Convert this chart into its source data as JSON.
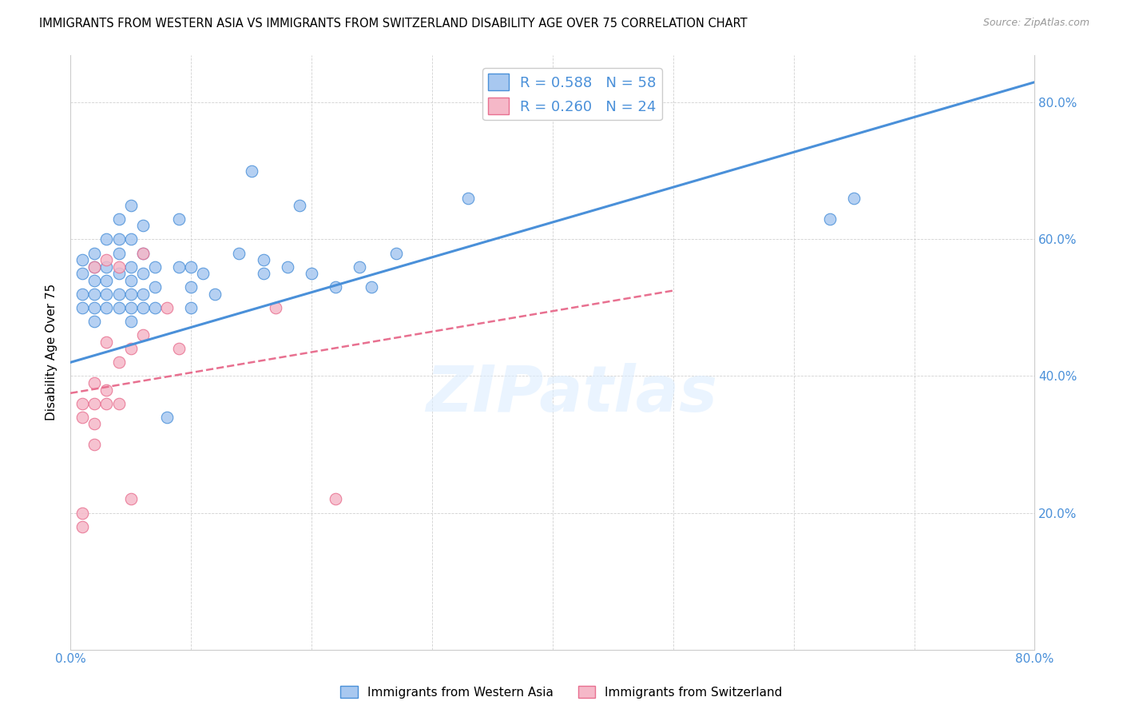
{
  "title": "IMMIGRANTS FROM WESTERN ASIA VS IMMIGRANTS FROM SWITZERLAND DISABILITY AGE OVER 75 CORRELATION CHART",
  "source": "Source: ZipAtlas.com",
  "ylabel": "Disability Age Over 75",
  "xlim": [
    0.0,
    0.8
  ],
  "ylim": [
    0.0,
    0.87
  ],
  "xtick_labels": [
    "0.0%",
    "",
    "",
    "",
    "",
    "",
    "",
    "",
    "80.0%"
  ],
  "xtick_values": [
    0.0,
    0.1,
    0.2,
    0.3,
    0.4,
    0.5,
    0.6,
    0.7,
    0.8
  ],
  "ytick_labels": [
    "20.0%",
    "40.0%",
    "60.0%",
    "80.0%"
  ],
  "ytick_values": [
    0.2,
    0.4,
    0.6,
    0.8
  ],
  "blue_color": "#a8c8f0",
  "pink_color": "#f5b8c8",
  "line_blue": "#4a90d9",
  "line_pink": "#e87090",
  "R_blue": 0.588,
  "N_blue": 58,
  "R_pink": 0.26,
  "N_pink": 24,
  "legend_label_blue": "Immigrants from Western Asia",
  "legend_label_pink": "Immigrants from Switzerland",
  "watermark": "ZIPatlas",
  "blue_line_x": [
    0.0,
    0.8
  ],
  "blue_line_y": [
    0.42,
    0.83
  ],
  "pink_line_x": [
    0.0,
    0.5
  ],
  "pink_line_y": [
    0.375,
    0.525
  ],
  "blue_x": [
    0.01,
    0.01,
    0.01,
    0.01,
    0.02,
    0.02,
    0.02,
    0.02,
    0.02,
    0.02,
    0.03,
    0.03,
    0.03,
    0.03,
    0.03,
    0.04,
    0.04,
    0.04,
    0.04,
    0.04,
    0.04,
    0.05,
    0.05,
    0.05,
    0.05,
    0.05,
    0.05,
    0.05,
    0.06,
    0.06,
    0.06,
    0.06,
    0.06,
    0.07,
    0.07,
    0.07,
    0.08,
    0.09,
    0.09,
    0.1,
    0.1,
    0.1,
    0.11,
    0.12,
    0.14,
    0.15,
    0.16,
    0.16,
    0.18,
    0.19,
    0.2,
    0.22,
    0.24,
    0.25,
    0.27,
    0.33,
    0.63,
    0.65
  ],
  "blue_y": [
    0.5,
    0.52,
    0.55,
    0.57,
    0.48,
    0.5,
    0.52,
    0.54,
    0.56,
    0.58,
    0.5,
    0.52,
    0.54,
    0.56,
    0.6,
    0.5,
    0.52,
    0.55,
    0.58,
    0.6,
    0.63,
    0.48,
    0.5,
    0.52,
    0.54,
    0.56,
    0.6,
    0.65,
    0.5,
    0.52,
    0.55,
    0.58,
    0.62,
    0.5,
    0.53,
    0.56,
    0.34,
    0.56,
    0.63,
    0.5,
    0.53,
    0.56,
    0.55,
    0.52,
    0.58,
    0.7,
    0.55,
    0.57,
    0.56,
    0.65,
    0.55,
    0.53,
    0.56,
    0.53,
    0.58,
    0.66,
    0.63,
    0.66
  ],
  "pink_x": [
    0.01,
    0.01,
    0.01,
    0.01,
    0.02,
    0.02,
    0.02,
    0.02,
    0.02,
    0.03,
    0.03,
    0.03,
    0.03,
    0.04,
    0.04,
    0.04,
    0.05,
    0.05,
    0.06,
    0.06,
    0.08,
    0.09,
    0.17,
    0.22
  ],
  "pink_y": [
    0.18,
    0.2,
    0.34,
    0.36,
    0.3,
    0.33,
    0.36,
    0.39,
    0.56,
    0.36,
    0.38,
    0.45,
    0.57,
    0.36,
    0.42,
    0.56,
    0.22,
    0.44,
    0.46,
    0.58,
    0.5,
    0.44,
    0.5,
    0.22
  ]
}
